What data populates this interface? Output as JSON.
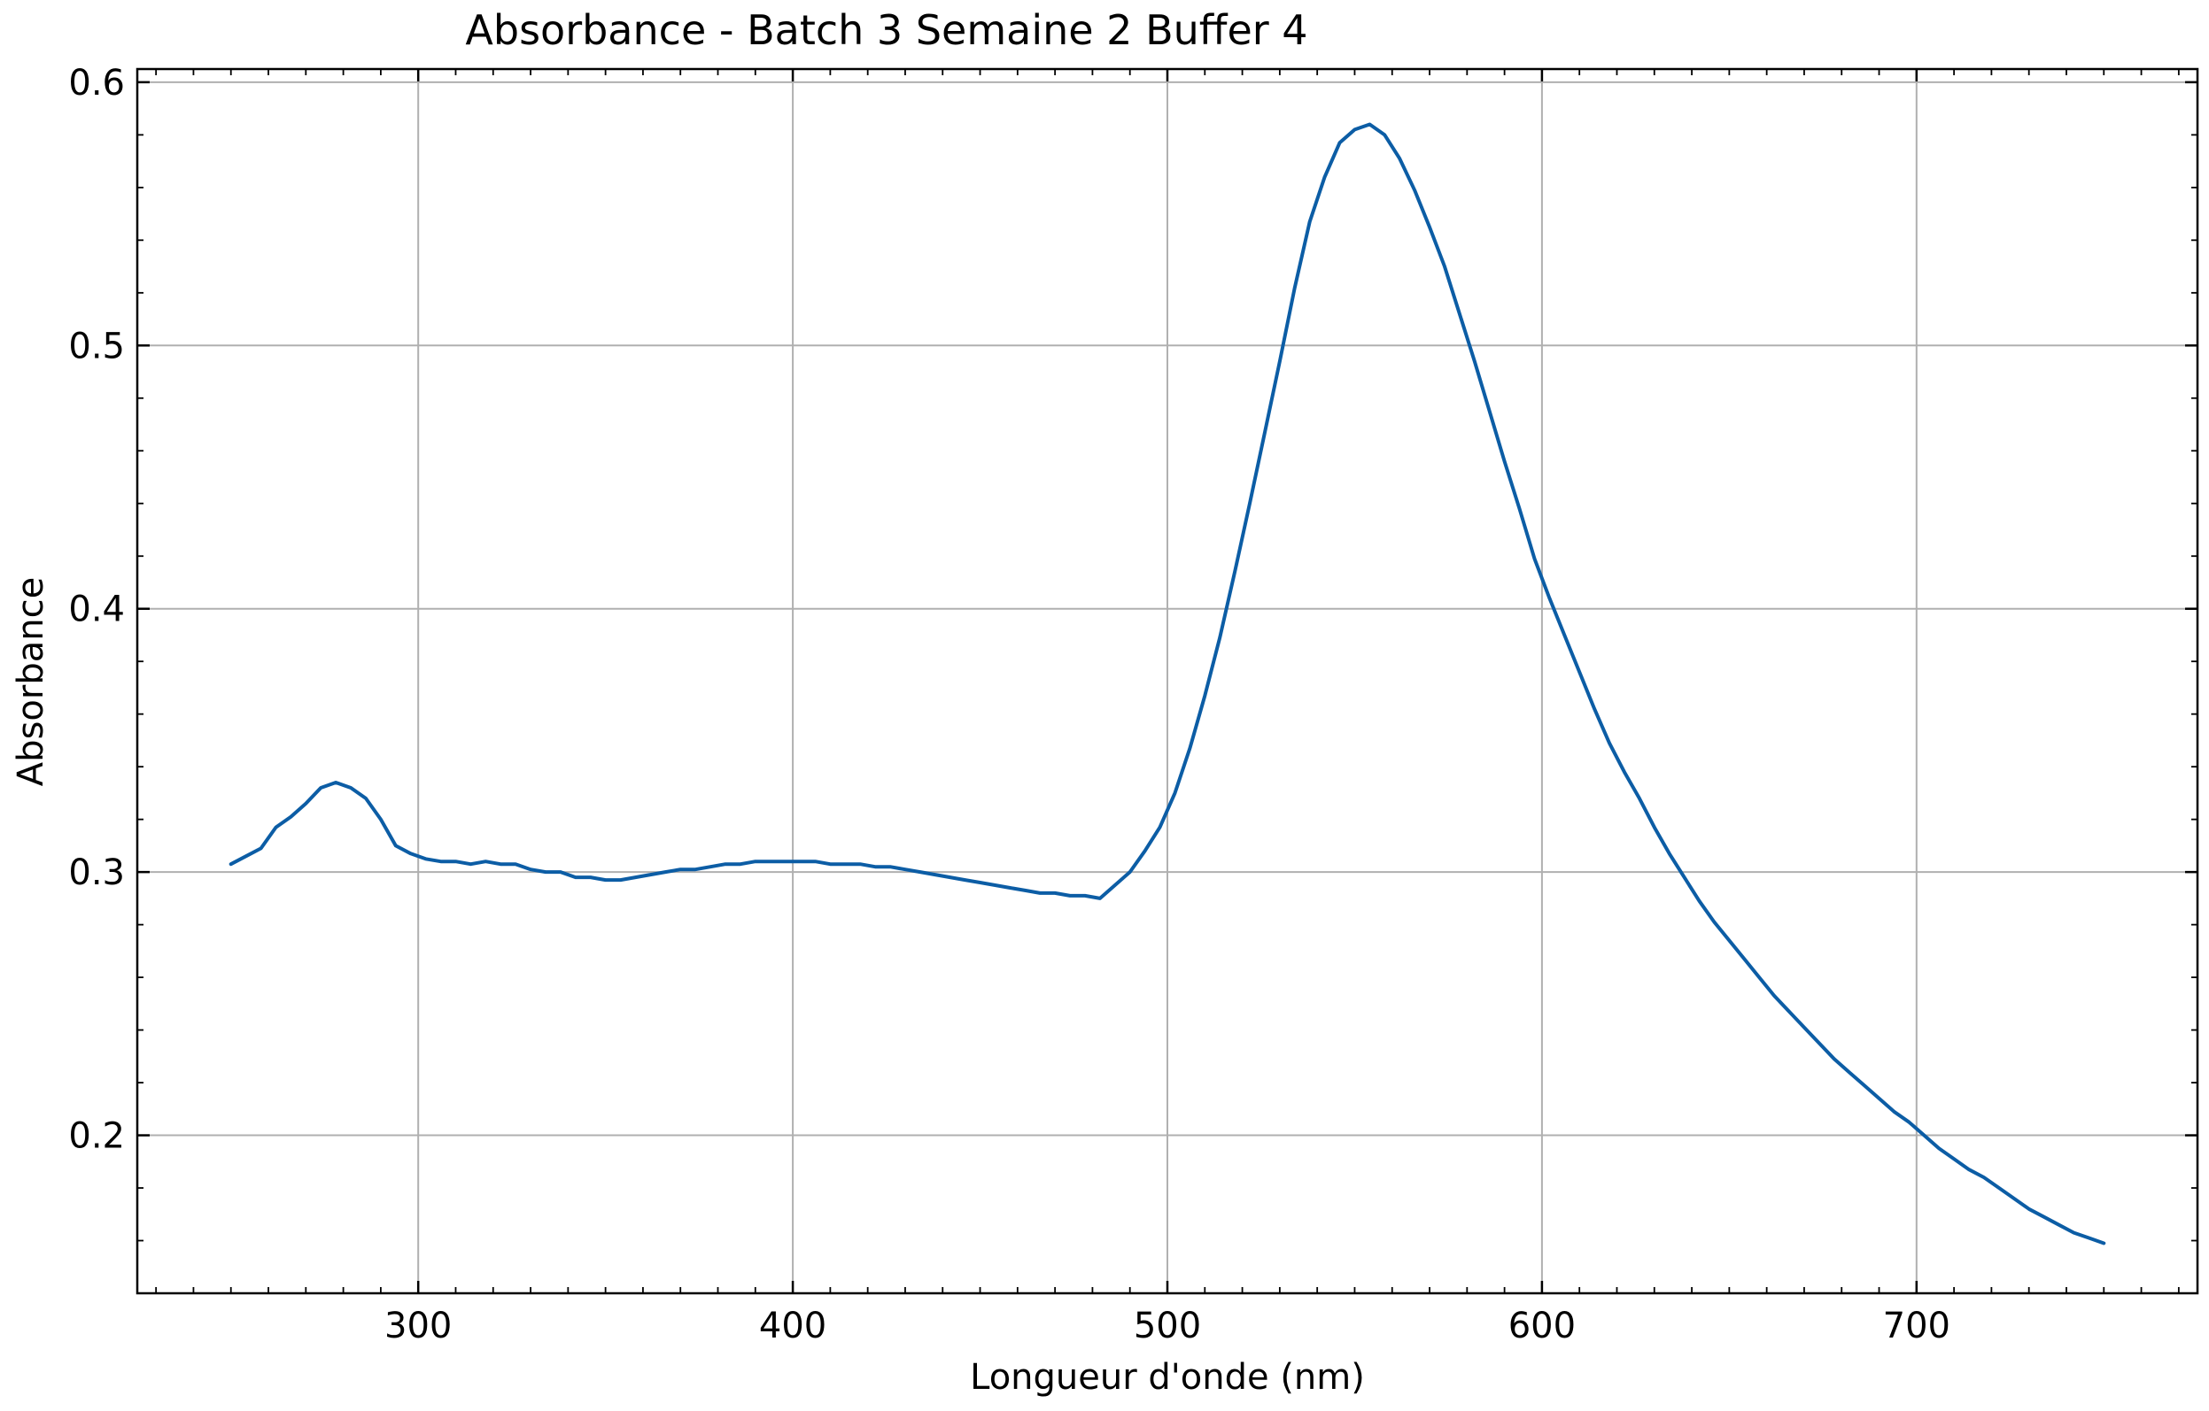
{
  "chart_data": {
    "type": "line",
    "title": "Absorbance - Batch 3 Semaine 2 Buffer 4",
    "xlabel": "Longueur d'onde (nm)",
    "ylabel": "Absorbance",
    "xlim": [
      225,
      775
    ],
    "ylim": [
      0.14,
      0.605
    ],
    "xticks": [
      300,
      400,
      500,
      600,
      700
    ],
    "yticks": [
      0.2,
      0.3,
      0.4,
      0.5,
      0.6
    ],
    "xtick_labels": [
      "300",
      "400",
      "500",
      "600",
      "700"
    ],
    "ytick_labels": [
      "0.2",
      "0.3",
      "0.4",
      "0.5",
      "0.6"
    ],
    "x_minor_step": 10,
    "y_minor_step": 0.02,
    "grid": true,
    "line_color": "#0c5da5",
    "grid_color": "#b0b0b0",
    "series": [
      {
        "x": [
          250,
          254,
          258,
          262,
          266,
          270,
          274,
          278,
          282,
          286,
          290,
          294,
          298,
          302,
          306,
          310,
          314,
          318,
          322,
          326,
          330,
          334,
          338,
          342,
          346,
          350,
          354,
          358,
          362,
          366,
          370,
          374,
          378,
          382,
          386,
          390,
          394,
          398,
          402,
          406,
          410,
          414,
          418,
          422,
          426,
          430,
          434,
          438,
          442,
          446,
          450,
          454,
          458,
          462,
          466,
          470,
          474,
          478,
          482,
          486,
          490,
          494,
          498,
          502,
          506,
          510,
          514,
          518,
          522,
          526,
          530,
          534,
          538,
          542,
          546,
          550,
          554,
          558,
          562,
          566,
          570,
          574,
          578,
          582,
          586,
          590,
          594,
          598,
          602,
          606,
          610,
          614,
          618,
          622,
          626,
          630,
          634,
          638,
          642,
          646,
          650,
          654,
          658,
          662,
          666,
          670,
          674,
          678,
          682,
          686,
          690,
          694,
          698,
          702,
          706,
          710,
          714,
          718,
          722,
          726,
          730,
          734,
          738,
          742,
          746,
          750
        ],
        "y": [
          0.303,
          0.306,
          0.309,
          0.317,
          0.321,
          0.326,
          0.332,
          0.334,
          0.332,
          0.328,
          0.32,
          0.31,
          0.307,
          0.305,
          0.304,
          0.304,
          0.303,
          0.304,
          0.303,
          0.303,
          0.301,
          0.3,
          0.3,
          0.298,
          0.298,
          0.297,
          0.297,
          0.298,
          0.299,
          0.3,
          0.301,
          0.301,
          0.302,
          0.303,
          0.303,
          0.304,
          0.304,
          0.304,
          0.304,
          0.304,
          0.303,
          0.303,
          0.303,
          0.302,
          0.302,
          0.301,
          0.3,
          0.299,
          0.298,
          0.297,
          0.296,
          0.295,
          0.294,
          0.293,
          0.292,
          0.292,
          0.291,
          0.291,
          0.29,
          0.295,
          0.3,
          0.308,
          0.317,
          0.33,
          0.347,
          0.367,
          0.389,
          0.414,
          0.44,
          0.467,
          0.494,
          0.522,
          0.547,
          0.564,
          0.577,
          0.582,
          0.584,
          0.58,
          0.571,
          0.559,
          0.545,
          0.53,
          0.512,
          0.494,
          0.475,
          0.456,
          0.438,
          0.419,
          0.404,
          0.39,
          0.376,
          0.362,
          0.349,
          0.338,
          0.328,
          0.317,
          0.307,
          0.298,
          0.289,
          0.281,
          0.274,
          0.267,
          0.26,
          0.253,
          0.247,
          0.241,
          0.235,
          0.229,
          0.224,
          0.219,
          0.214,
          0.209,
          0.205,
          0.2,
          0.195,
          0.191,
          0.187,
          0.184,
          0.18,
          0.176,
          0.172,
          0.169,
          0.166,
          0.163,
          0.161,
          0.159
        ]
      }
    ]
  }
}
